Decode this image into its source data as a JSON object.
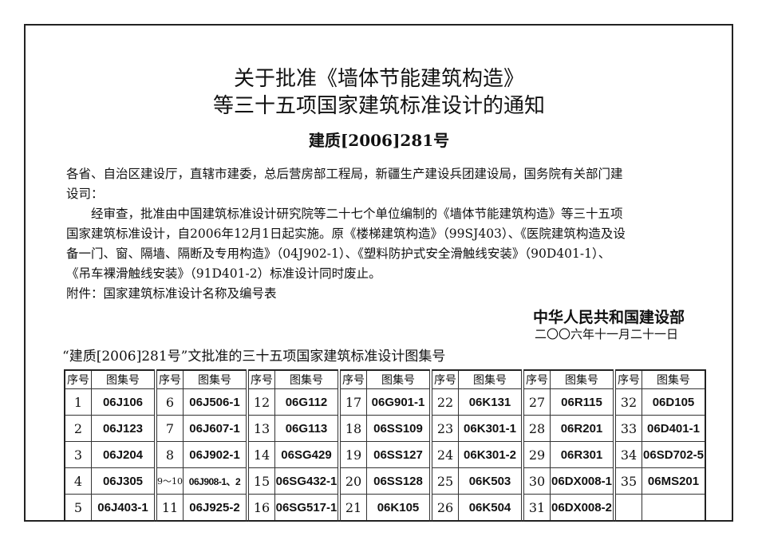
{
  "title_line1": "关于批准《墙体节能建筑构造》",
  "title_line2": "等三十五项国家建筑标准设计的通知",
  "doc_number": "建质[2006]281号",
  "body": [
    "各省、自治区建设厅，直辖市建委，总后营房部工程局，新疆生产建设兵团建设局，国务院有关部门建",
    "设司：",
    "　　经审查，批准由中国建筑标准设计研究院等二十七个单位编制的《墙体节能建筑构造》等三十五项",
    "国家建筑标准设计，自2006年12月1日起实施。原《楼梯建筑构造》（99SJ403）、《医院建筑构造及设",
    "备一门、窗、隔墙、隔断及专用构造》（04J902-1）、《塑料防护式安全滑触线安装》（90D401-1）、",
    "《吊车裸滑触线安装》（91D401-2）标准设计同时废止。",
    "附件：国家建筑标准设计名称及编号表"
  ],
  "signature": "中华人民共和国建设部",
  "date": "二〇〇六年十一月二十一日",
  "table_caption": "“建质[2006]281号”文批准的三十五项国家建筑标准设计图集号",
  "table": {
    "header_seq": "序号",
    "header_code": "图集号",
    "rows": [
      [
        [
          "1",
          "06J106"
        ],
        [
          "6",
          "06J506-1"
        ],
        [
          "12",
          "06G112"
        ],
        [
          "17",
          "06G901-1"
        ],
        [
          "22",
          "06K131"
        ],
        [
          "27",
          "06R115"
        ],
        [
          "32",
          "06D105"
        ]
      ],
      [
        [
          "2",
          "06J123"
        ],
        [
          "7",
          "06J607-1"
        ],
        [
          "13",
          "06G113"
        ],
        [
          "18",
          "06SS109"
        ],
        [
          "23",
          "06K301-1"
        ],
        [
          "28",
          "06R201"
        ],
        [
          "33",
          "06D401-1"
        ]
      ],
      [
        [
          "3",
          "06J204"
        ],
        [
          "8",
          "06J902-1"
        ],
        [
          "14",
          "06SG429"
        ],
        [
          "19",
          "06SS127"
        ],
        [
          "24",
          "06K301-2"
        ],
        [
          "29",
          "06R301"
        ],
        [
          "34",
          "06SD702-5"
        ]
      ],
      [
        [
          "4",
          "06J305"
        ],
        [
          "9～10",
          "06J908-1、2"
        ],
        [
          "15",
          "06SG432-1"
        ],
        [
          "20",
          "06SS128"
        ],
        [
          "25",
          "06K503"
        ],
        [
          "30",
          "06DX008-1"
        ],
        [
          "35",
          "06MS201"
        ]
      ],
      [
        [
          "5",
          "06J403-1"
        ],
        [
          "11",
          "06J925-2"
        ],
        [
          "16",
          "06SG517-1"
        ],
        [
          "21",
          "06K105"
        ],
        [
          "26",
          "06K504"
        ],
        [
          "31",
          "06DX008-2"
        ],
        [
          "",
          ""
        ]
      ]
    ]
  }
}
